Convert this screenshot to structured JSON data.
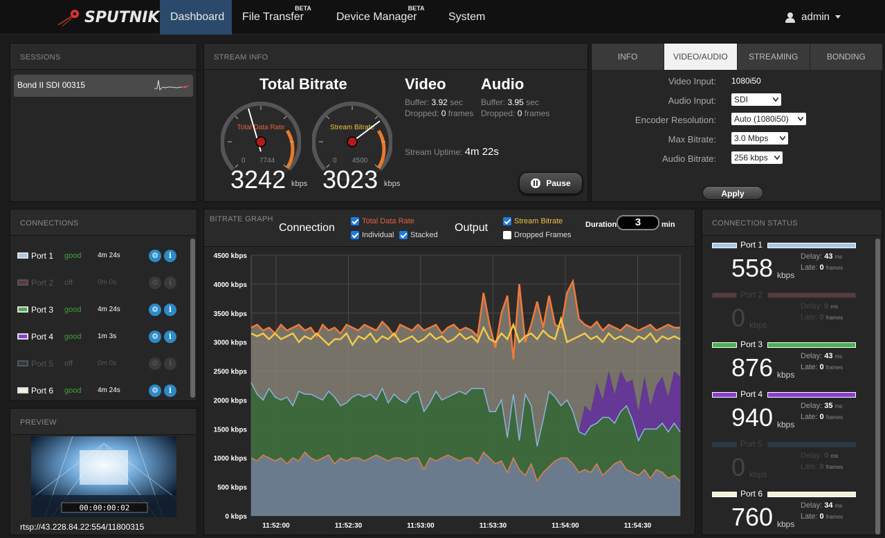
{
  "nav": {
    "logo": "SPUTNIK",
    "items": [
      {
        "label": "Dashboard",
        "beta": ""
      },
      {
        "label": "File Transfer",
        "beta": "BETA"
      },
      {
        "label": "Device Manager",
        "beta": "BETA"
      },
      {
        "label": "System",
        "beta": ""
      }
    ],
    "user": "admin"
  },
  "sessions": {
    "title": "SESSIONS",
    "items": [
      {
        "label": "Bond II SDI 00315"
      }
    ]
  },
  "stream_info": {
    "title": "STREAM INFO",
    "total_bitrate_title": "Total Bitrate",
    "gauge1": {
      "label": "Total Data Rate",
      "min": "0",
      "max": "7744",
      "value": "3242",
      "unit": "kbps",
      "fraction": 0.42
    },
    "gauge2": {
      "label": "Stream Bitrate",
      "min": "0",
      "max": "4500",
      "value": "3023",
      "unit": "kbps",
      "fraction": 0.67
    },
    "video": {
      "title": "Video",
      "buffer_label": "Buffer:",
      "buffer_value": "3.92",
      "buffer_unit": "sec",
      "dropped_label": "Dropped:",
      "dropped_value": "0",
      "dropped_unit": "frames"
    },
    "audio": {
      "title": "Audio",
      "buffer_label": "Buffer:",
      "buffer_value": "3.95",
      "buffer_unit": "sec",
      "dropped_label": "Dropped:",
      "dropped_value": "0",
      "dropped_unit": "frames"
    },
    "uptime_label": "Stream Uptime:",
    "uptime_value": "4m 22s",
    "pause_label": "Pause"
  },
  "settings": {
    "tabs": [
      "INFO",
      "VIDEO/AUDIO",
      "STREAMING",
      "BONDING"
    ],
    "active_tab": 1,
    "rows": [
      {
        "label": "Video Input:",
        "value": "1080i50",
        "type": "text"
      },
      {
        "label": "Audio Input:",
        "value": "SDI",
        "type": "select"
      },
      {
        "label": "Encoder Resolution:",
        "value": "Auto (1080i50)",
        "type": "select"
      },
      {
        "label": "Max Bitrate:",
        "value": "3.0 Mbps",
        "type": "select"
      },
      {
        "label": "Audio Bitrate:",
        "value": "256 kbps",
        "type": "select"
      }
    ],
    "apply_label": "Apply"
  },
  "connections": {
    "title": "CONNECTIONS",
    "items": [
      {
        "name": "Port 1",
        "status": "good",
        "time": "4m 24s",
        "color": "#a8c8e8",
        "active": true
      },
      {
        "name": "Port 2",
        "status": "off",
        "time": "0m 0s",
        "color": "#5a3a3a",
        "active": false
      },
      {
        "name": "Port 3",
        "status": "good",
        "time": "4m 24s",
        "color": "#4caf50",
        "active": true
      },
      {
        "name": "Port 4",
        "status": "good",
        "time": "1m 3s",
        "color": "#8a3fd0",
        "active": true
      },
      {
        "name": "Port 5",
        "status": "off",
        "time": "0m 0s",
        "color": "#2a3a4a",
        "active": false
      },
      {
        "name": "Port 6",
        "status": "good",
        "time": "4m 24s",
        "color": "#f5f0d8",
        "active": true
      }
    ]
  },
  "preview": {
    "title": "PREVIEW",
    "timecode": "00:00:00:02",
    "url": "rtsp://43.228.84.22:554/11800315"
  },
  "graph": {
    "title": "BITRATE GRAPH",
    "connection_label": "Connection",
    "output_label": "Output",
    "checkboxes": {
      "total_data_rate": {
        "label": "Total Data Rate",
        "checked": true,
        "color": "#e8603a"
      },
      "individual": {
        "label": "Individual",
        "checked": true
      },
      "stacked": {
        "label": "Stacked",
        "checked": true
      },
      "stream_bitrate": {
        "label": "Stream Bitrate",
        "checked": true,
        "color": "#f0c040"
      },
      "dropped_frames": {
        "label": "Dropped Frames",
        "checked": false
      }
    },
    "duration_label": "Duration",
    "duration_value": "3",
    "duration_unit": "min"
  },
  "chart_data": {
    "type": "area",
    "y_ticks": [
      "4500 kbps",
      "4000 kbps",
      "3500 kbps",
      "3000 kbps",
      "2500 kbps",
      "2000 kbps",
      "1500 kbps",
      "1000 kbps",
      "500 kbps",
      "0 kbps"
    ],
    "ylim": [
      0,
      4500
    ],
    "x_ticks": [
      "11:52:00",
      "11:52:30",
      "11:53:00",
      "11:53:30",
      "11:54:00",
      "11:54:30"
    ],
    "grid": true,
    "series": [
      {
        "name": "Port 1",
        "color": "#a0b4c8",
        "values": [
          1000,
          950,
          1050,
          1000,
          950,
          1000,
          900,
          1000,
          950,
          1100,
          1000,
          950,
          1000,
          1050,
          900,
          1000,
          950,
          1000,
          1000,
          950,
          1000,
          1050,
          1000,
          950,
          1000,
          1000,
          950,
          1000,
          1000,
          800,
          1000,
          950,
          1000,
          1050,
          1000,
          950,
          1000,
          1000,
          900,
          1100,
          1000,
          900,
          950,
          750,
          1000,
          800,
          700,
          900,
          600,
          750,
          850,
          950,
          1000,
          1000,
          900,
          750,
          800,
          750,
          900,
          700,
          800,
          900,
          950,
          800,
          750,
          700,
          800,
          650,
          800,
          750,
          650,
          700,
          600
        ]
      },
      {
        "name": "Port 3",
        "color": "#4a8a4a",
        "values": [
          1300,
          1150,
          950,
          1200,
          1100,
          1000,
          1150,
          900,
          1200,
          1000,
          1100,
          1100,
          1000,
          1100,
          1150,
          900,
          1000,
          1050,
          1100,
          1100,
          1100,
          950,
          1200,
          1000,
          1100,
          1000,
          1000,
          1100,
          1150,
          1000,
          950,
          1200,
          1000,
          1000,
          1100,
          1200,
          1100,
          1200,
          1300,
          1100,
          800,
          900,
          1050,
          600,
          1100,
          500,
          1400,
          1000,
          600,
          900,
          1300,
          1100,
          900,
          1000,
          900,
          700,
          600,
          800,
          700,
          1000,
          900,
          700,
          850,
          1100,
          900,
          600,
          700,
          850,
          700,
          850,
          800,
          900,
          850
        ]
      },
      {
        "name": "Port 4",
        "color": "#7a3fa8",
        "values": [
          0,
          0,
          0,
          0,
          0,
          0,
          0,
          0,
          0,
          0,
          0,
          0,
          0,
          0,
          0,
          0,
          0,
          0,
          0,
          0,
          0,
          0,
          0,
          0,
          0,
          0,
          0,
          0,
          0,
          0,
          0,
          0,
          0,
          0,
          0,
          0,
          0,
          0,
          0,
          0,
          0,
          0,
          0,
          0,
          0,
          0,
          0,
          0,
          0,
          0,
          0,
          0,
          0,
          0,
          0,
          0,
          500,
          250,
          700,
          300,
          800,
          500,
          700,
          400,
          700,
          500,
          900,
          400,
          750,
          800,
          600,
          900,
          950
        ]
      },
      {
        "name": "Total Data Rate",
        "color": "#f07a3a",
        "type": "line",
        "values": [
          3250,
          3300,
          3200,
          3250,
          3150,
          3300,
          3200,
          3250,
          3300,
          3200,
          3250,
          3100,
          3300,
          3200,
          3250,
          3150,
          3300,
          3250,
          3200,
          3300,
          3250,
          3200,
          3350,
          3250,
          3100,
          3300,
          3250,
          3200,
          3300,
          3200,
          3250,
          3300,
          3150,
          3250,
          3300,
          3200,
          3250,
          3200,
          3100,
          3850,
          3300,
          2900,
          3500,
          3800,
          2700,
          4000,
          3000,
          3300,
          3700,
          3250,
          3800,
          3300,
          3250,
          3850,
          4050,
          3400,
          3300,
          3250,
          3350,
          3200,
          3300,
          3250,
          3200,
          3300,
          3250,
          3200,
          3250,
          3300,
          3200,
          3250,
          3300,
          3250,
          3250
        ]
      },
      {
        "name": "Stream Bitrate",
        "color": "#f0c94a",
        "type": "line",
        "values": [
          3150,
          3100,
          3150,
          3050,
          3150,
          3050,
          3100,
          3150,
          3000,
          3100,
          3050,
          3150,
          3050,
          2950,
          3050,
          3050,
          3150,
          2950,
          3100,
          3050,
          3150,
          3000,
          3100,
          3050,
          3150,
          3000,
          3050,
          3100,
          3000,
          3050,
          3150,
          3050,
          3100,
          3000,
          3050,
          3150,
          3050,
          3100,
          3000,
          3250,
          3050,
          3000,
          3150,
          3050,
          3300,
          3000,
          3100,
          3150,
          3050,
          3200,
          3100,
          3050,
          3400,
          3000,
          3050,
          3100,
          3150,
          3050,
          3100,
          3000,
          3150,
          3050,
          3100,
          3050,
          3000,
          3100,
          3050,
          3150,
          3000,
          3100,
          3050,
          3100,
          3050
        ]
      }
    ]
  },
  "connection_status": {
    "title": "CONNECTION STATUS",
    "delay_label": "Delay:",
    "late_label": "Late:",
    "items": [
      {
        "name": "Port 1",
        "value": "558",
        "delay": "43",
        "late": "0",
        "color": "#a8c8e8",
        "active": true
      },
      {
        "name": "Port 2",
        "value": "0",
        "delay": "0",
        "late": "0",
        "color": "#5a3a3a",
        "active": false
      },
      {
        "name": "Port 3",
        "value": "876",
        "delay": "43",
        "late": "0",
        "color": "#4caf50",
        "active": true
      },
      {
        "name": "Port 4",
        "value": "940",
        "delay": "35",
        "late": "0",
        "color": "#8a3fd0",
        "active": true
      },
      {
        "name": "Port 5",
        "value": "0",
        "delay": "0",
        "late": "0",
        "color": "#2a3a4a",
        "active": false
      },
      {
        "name": "Port 6",
        "value": "760",
        "delay": "34",
        "late": "0",
        "color": "#f5f0d8",
        "active": true
      }
    ],
    "unit": "kbps",
    "ms_unit": "ms",
    "frames_unit": "frames"
  }
}
